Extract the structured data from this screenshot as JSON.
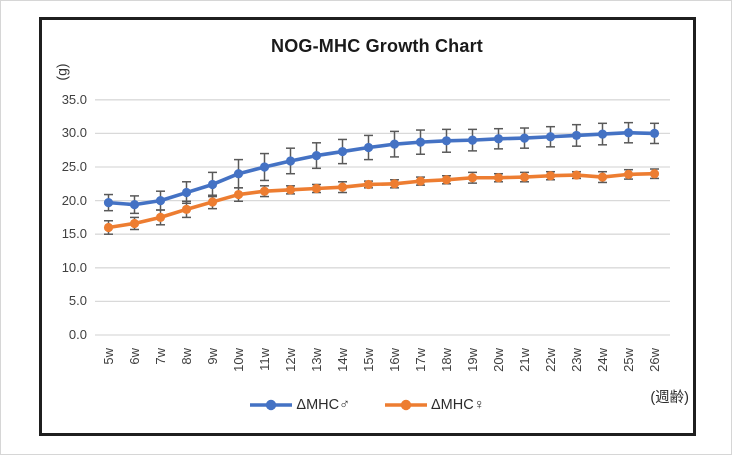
{
  "chart_data": {
    "type": "line",
    "title": "NOG-MHC Growth Chart",
    "y_axis_unit": "(g)",
    "x_axis_unit": "(週齢)",
    "categories": [
      "5w",
      "6w",
      "7w",
      "8w",
      "9w",
      "10w",
      "11w",
      "12w",
      "13w",
      "14w",
      "15w",
      "16w",
      "17w",
      "18w",
      "19w",
      "20w",
      "21w",
      "22w",
      "23w",
      "24w",
      "25w",
      "26w"
    ],
    "y_tick_labels": [
      "35.0",
      "30.0",
      "25.0",
      "20.0",
      "15.0",
      "10.0",
      "5.0",
      "0.0"
    ],
    "ylim": [
      0,
      35
    ],
    "grid": true,
    "error_bars": true,
    "legend_position": "bottom",
    "series": [
      {
        "name": "ΔMHC♂",
        "color": "#4472C4",
        "values": [
          19.7,
          19.4,
          20.0,
          21.2,
          22.4,
          24.0,
          25.0,
          25.9,
          26.7,
          27.3,
          27.9,
          28.4,
          28.7,
          28.9,
          29.0,
          29.2,
          29.3,
          29.5,
          29.7,
          29.9,
          30.1,
          30.0
        ],
        "errors": [
          1.2,
          1.3,
          1.4,
          1.6,
          1.8,
          2.1,
          2.0,
          1.9,
          1.9,
          1.8,
          1.8,
          1.9,
          1.8,
          1.7,
          1.6,
          1.5,
          1.5,
          1.5,
          1.6,
          1.6,
          1.5,
          1.5
        ]
      },
      {
        "name": "ΔMHC♀",
        "color": "#ED7D31",
        "values": [
          16.0,
          16.6,
          17.5,
          18.7,
          19.8,
          20.9,
          21.4,
          21.6,
          21.8,
          22.0,
          22.4,
          22.5,
          22.9,
          23.1,
          23.4,
          23.4,
          23.5,
          23.7,
          23.8,
          23.5,
          23.9,
          24.0
        ],
        "errors": [
          1.0,
          0.9,
          1.1,
          1.2,
          1.0,
          1.0,
          0.8,
          0.6,
          0.6,
          0.8,
          0.5,
          0.6,
          0.6,
          0.6,
          0.8,
          0.6,
          0.7,
          0.6,
          0.5,
          0.8,
          0.7,
          0.7
        ]
      }
    ],
    "colors": {
      "gridline": "#d9d9d9",
      "error_bar": "#595959",
      "tick_text": "#404040",
      "title_text": "#1a1a1a",
      "frame_border": "#1f1f1f"
    }
  }
}
